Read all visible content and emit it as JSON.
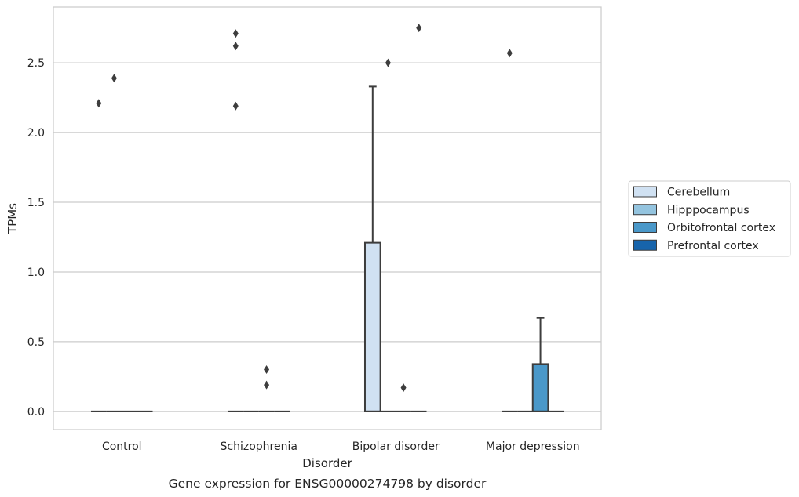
{
  "chart_data": {
    "type": "box",
    "caption": "Gene expression for ENSG00000274798 by disorder",
    "xlabel": "Disorder",
    "ylabel": "TPMs",
    "ylim": [
      -0.13,
      2.9
    ],
    "yticks": [
      0.0,
      0.5,
      1.0,
      1.5,
      2.0,
      2.5
    ],
    "ytick_labels": [
      "0.0",
      "0.5",
      "1.0",
      "1.5",
      "2.0",
      "2.5"
    ],
    "categories": [
      "Control",
      "Schizophrenia",
      "Bipolar disorder",
      "Major depression"
    ],
    "grid": "horizontal",
    "legend_position": "right",
    "series": [
      {
        "name": "Cerebellum",
        "color": "#d0e1f2",
        "boxes": [
          {
            "q1": 0,
            "median": 0,
            "q3": 0,
            "whisker_low": 0,
            "whisker_high": 0,
            "outliers": [
              2.21
            ]
          },
          {
            "q1": 0,
            "median": 0,
            "q3": 0,
            "whisker_low": 0,
            "whisker_high": 0,
            "outliers": [
              2.19,
              2.62,
              2.71
            ]
          },
          {
            "q1": 0,
            "median": 0,
            "q3": 1.21,
            "whisker_low": 0,
            "whisker_high": 2.33,
            "outliers": []
          },
          {
            "q1": 0,
            "median": 0,
            "q3": 0,
            "whisker_low": 0,
            "whisker_high": 0,
            "outliers": [
              2.57
            ]
          }
        ]
      },
      {
        "name": "Hipppocampus",
        "color": "#94c4df",
        "boxes": [
          {
            "q1": 0,
            "median": 0,
            "q3": 0,
            "whisker_low": 0,
            "whisker_high": 0,
            "outliers": [
              2.39
            ]
          },
          {
            "q1": 0,
            "median": 0,
            "q3": 0,
            "whisker_low": 0,
            "whisker_high": 0,
            "outliers": []
          },
          {
            "q1": 0,
            "median": 0,
            "q3": 0,
            "whisker_low": 0,
            "whisker_high": 0,
            "outliers": [
              2.5
            ]
          },
          {
            "q1": 0,
            "median": 0,
            "q3": 0,
            "whisker_low": 0,
            "whisker_high": 0,
            "outliers": []
          }
        ]
      },
      {
        "name": "Orbitofrontal cortex",
        "color": "#4a98c9",
        "boxes": [
          {
            "q1": 0,
            "median": 0,
            "q3": 0,
            "whisker_low": 0,
            "whisker_high": 0,
            "outliers": []
          },
          {
            "q1": 0,
            "median": 0,
            "q3": 0,
            "whisker_low": 0,
            "whisker_high": 0,
            "outliers": [
              0.19,
              0.3
            ]
          },
          {
            "q1": 0,
            "median": 0,
            "q3": 0,
            "whisker_low": 0,
            "whisker_high": 0,
            "outliers": [
              0.17
            ]
          },
          {
            "q1": 0,
            "median": 0,
            "q3": 0.34,
            "whisker_low": 0,
            "whisker_high": 0.67,
            "outliers": []
          }
        ]
      },
      {
        "name": "Prefrontal cortex",
        "color": "#1764ab",
        "boxes": [
          {
            "q1": 0,
            "median": 0,
            "q3": 0,
            "whisker_low": 0,
            "whisker_high": 0,
            "outliers": []
          },
          {
            "q1": 0,
            "median": 0,
            "q3": 0,
            "whisker_low": 0,
            "whisker_high": 0,
            "outliers": []
          },
          {
            "q1": 0,
            "median": 0,
            "q3": 0,
            "whisker_low": 0,
            "whisker_high": 0,
            "outliers": [
              2.75
            ]
          },
          {
            "q1": 0,
            "median": 0,
            "q3": 0,
            "whisker_low": 0,
            "whisker_high": 0,
            "outliers": []
          }
        ]
      }
    ]
  }
}
